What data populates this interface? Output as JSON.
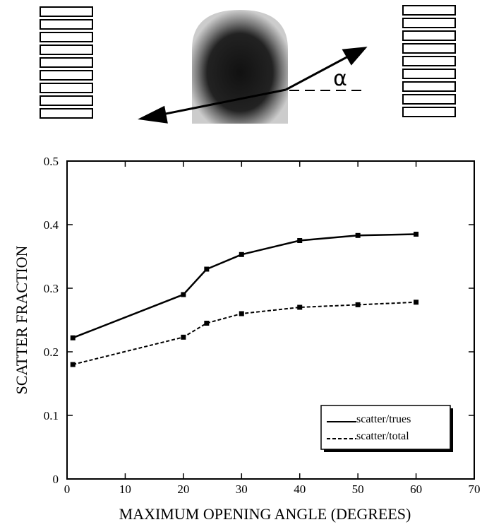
{
  "diagram": {
    "angle_label": "α"
  },
  "chart_data": {
    "type": "line",
    "x_label": "MAXIMUM OPENING ANGLE (DEGREES)",
    "y_label": "SCATTER FRACTION",
    "xlim": [
      0,
      70
    ],
    "ylim": [
      0,
      0.5
    ],
    "xticks": [
      0,
      10,
      20,
      30,
      40,
      50,
      60,
      70
    ],
    "yticks": [
      0,
      0.1,
      0.2,
      0.3,
      0.4,
      0.5
    ],
    "legend": "lower right",
    "series": [
      {
        "name": "scatter/trues",
        "color": "#000000",
        "line_style": "solid",
        "x": [
          1,
          20,
          24,
          30,
          40,
          50,
          60
        ],
        "values": [
          0.222,
          0.29,
          0.33,
          0.353,
          0.375,
          0.383,
          0.385
        ]
      },
      {
        "name": "scatter/total",
        "color": "#000000",
        "line_style": "dashed",
        "x": [
          1,
          20,
          24,
          30,
          40,
          50,
          60
        ],
        "values": [
          0.18,
          0.223,
          0.245,
          0.26,
          0.27,
          0.274,
          0.278
        ]
      }
    ]
  }
}
